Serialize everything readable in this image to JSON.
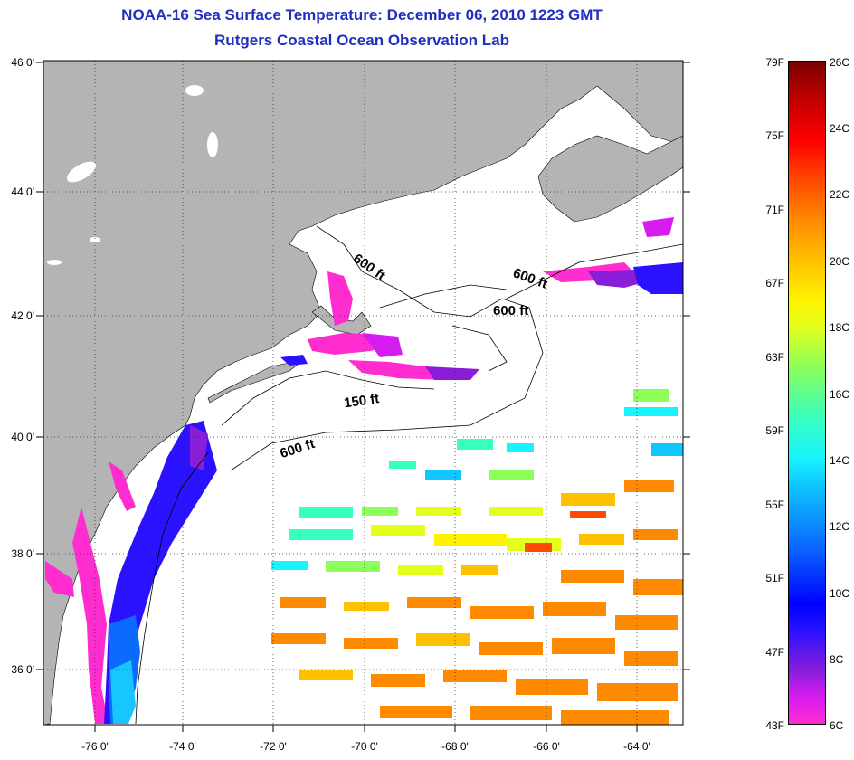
{
  "title": {
    "line1": "NOAA-16 Sea Surface Temperature:  December 06, 2010 1223 GMT",
    "line2": "Rutgers Coastal Ocean Observation Lab"
  },
  "map": {
    "lat_labels": [
      "46 0'",
      "44 0'",
      "42 0'",
      "40 0'",
      "38 0'",
      "36 0'"
    ],
    "lon_labels": [
      "-76 0'",
      "-74 0'",
      "-72 0'",
      "-70 0'",
      "-68 0'",
      "-66 0'",
      "-64 0'"
    ],
    "contour_labels": [
      "600 ft",
      "600 ft",
      "600 ft",
      "150 ft",
      "600 ft"
    ]
  },
  "colorbar": {
    "fahrenheit": [
      "79F",
      "75F",
      "71F",
      "67F",
      "63F",
      "59F",
      "55F",
      "51F",
      "47F",
      "43F"
    ],
    "celsius": [
      "26C",
      "24C",
      "22C",
      "20C",
      "18C",
      "16C",
      "14C",
      "12C",
      "10C",
      "8C",
      "6C"
    ]
  },
  "colors": {
    "land": "#b4b4b4",
    "title": "#1f2fbf",
    "cold": "#ff2dcf",
    "cool": "#0000ff",
    "mild": "#18f3ff",
    "warm": "#fff200",
    "hot": "#ff4a00"
  }
}
